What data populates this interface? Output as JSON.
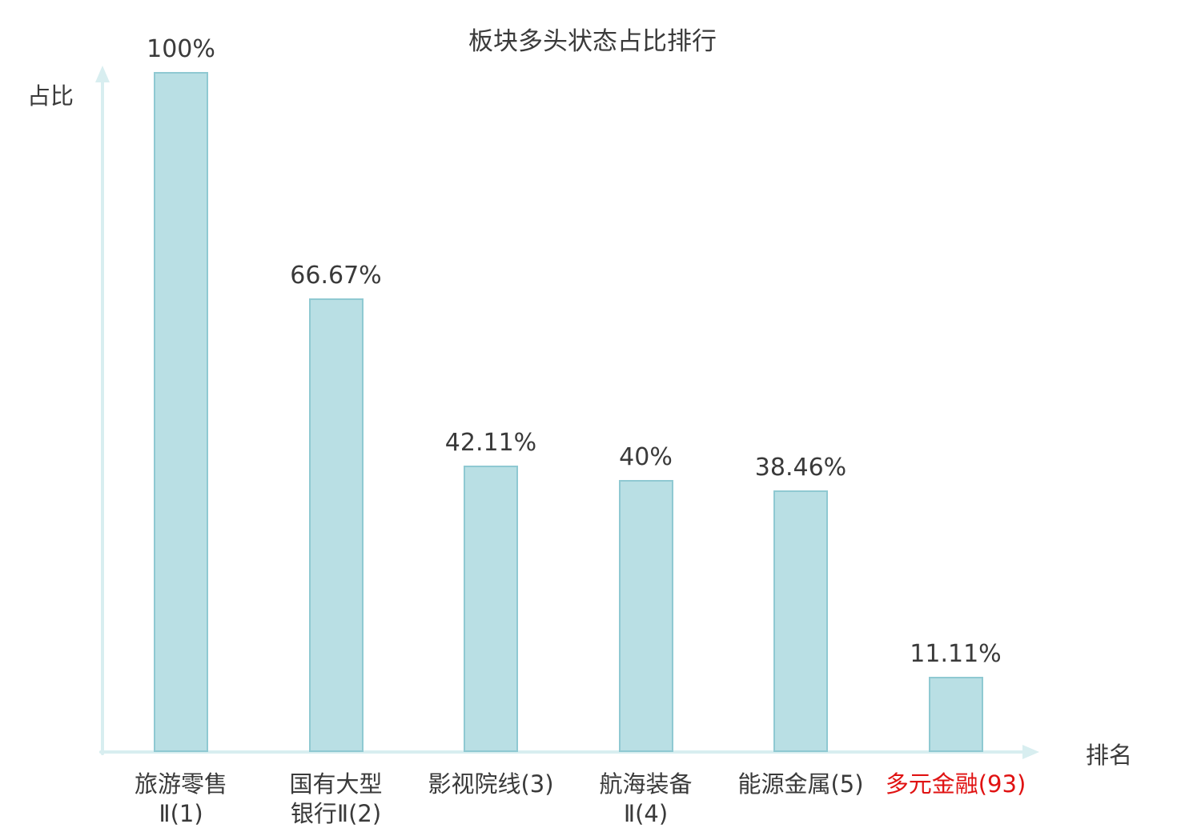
{
  "chart_data": {
    "type": "bar",
    "title": "板块多头状态占比排行",
    "xlabel": "排名",
    "ylabel": "占比",
    "ylim": [
      0,
      100
    ],
    "grid": false,
    "legend": "none",
    "categories": [
      "旅游零售Ⅱ(1)",
      "国有大型银行Ⅱ(2)",
      "影视院线(3)",
      "航海装备Ⅱ(4)",
      "能源金属(5)",
      "多元金融(93)"
    ],
    "values": [
      100,
      66.67,
      42.11,
      40,
      38.46,
      11.11
    ],
    "bars": [
      {
        "label_lines": [
          "旅游零售",
          "Ⅱ(1)"
        ],
        "value": 100,
        "value_label": "100%",
        "label_color": "#3a3a3a"
      },
      {
        "label_lines": [
          "国有大型",
          "银行Ⅱ(2)"
        ],
        "value": 66.67,
        "value_label": "66.67%",
        "label_color": "#3a3a3a"
      },
      {
        "label_lines": [
          "影视院线(3)"
        ],
        "value": 42.11,
        "value_label": "42.11%",
        "label_color": "#3a3a3a"
      },
      {
        "label_lines": [
          "航海装备",
          "Ⅱ(4)"
        ],
        "value": 40,
        "value_label": "40%",
        "label_color": "#3a3a3a"
      },
      {
        "label_lines": [
          "能源金属(5)"
        ],
        "value": 38.46,
        "value_label": "38.46%",
        "label_color": "#3a3a3a"
      },
      {
        "label_lines": [
          "多元金融(93)"
        ],
        "value": 11.11,
        "value_label": "11.11%",
        "label_color": "#e01212"
      }
    ],
    "colors": {
      "bar_fill": "#b9dfe4",
      "bar_border": "#8fc9d2",
      "axis": "#d8eef0",
      "text": "#3a3a3a",
      "highlight_text": "#e01212",
      "background": "#ffffff"
    }
  }
}
